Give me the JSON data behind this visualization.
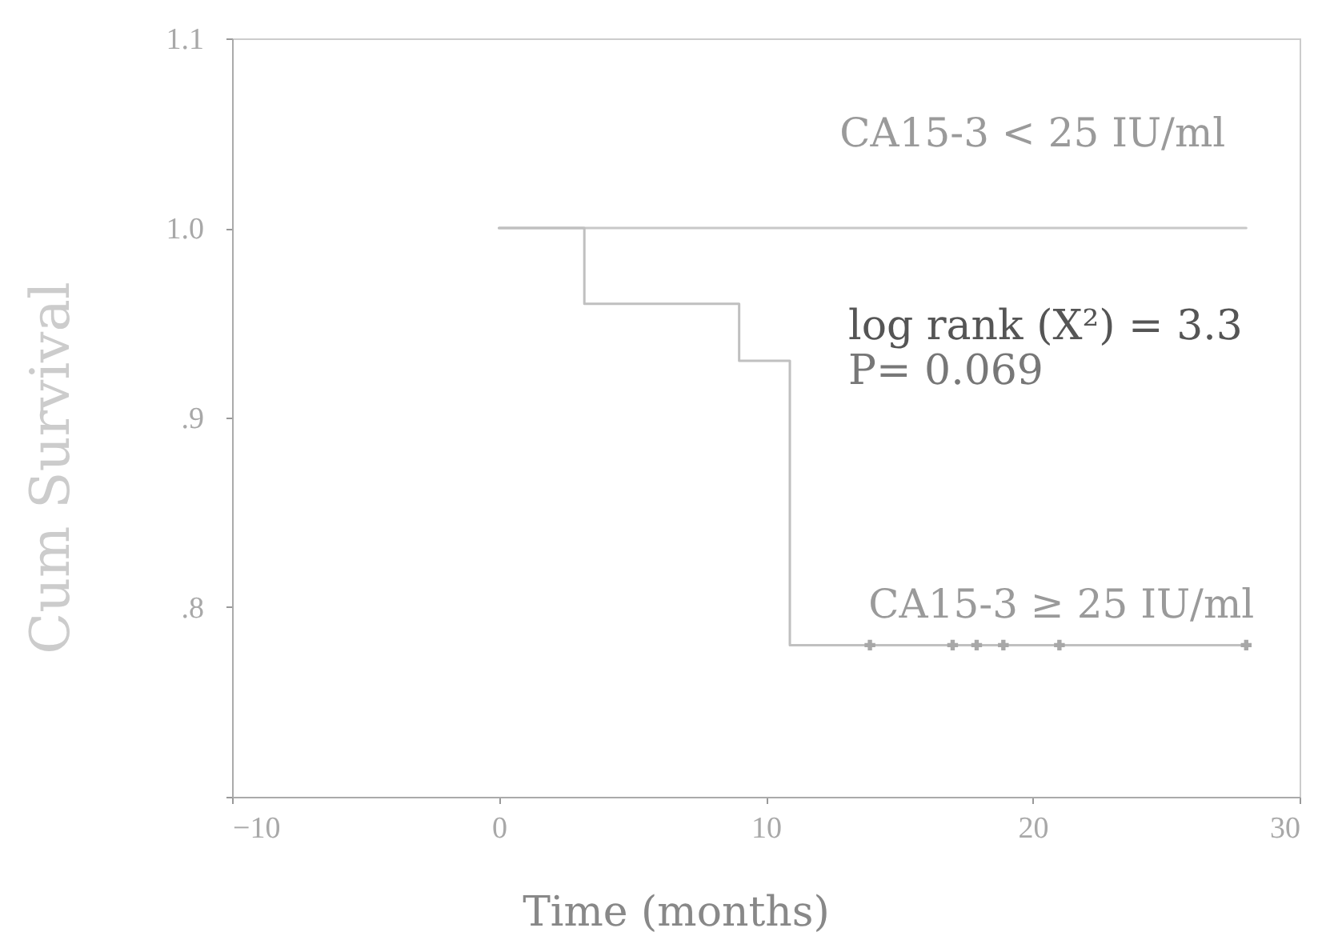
{
  "chart_data": {
    "type": "step",
    "xlabel": "Time (months)",
    "ylabel": "Cum Survival",
    "xlim": [
      -10,
      30
    ],
    "xticks": [
      -10,
      0,
      10,
      20,
      30
    ],
    "ylim": [
      0.7,
      1.1
    ],
    "yticks": [
      {
        "value": 0.7,
        "label": null
      },
      {
        "value": 0.8,
        "label": ".8"
      },
      {
        "value": 0.9,
        "label": ".9"
      },
      {
        "value": 1.0,
        "label": "1.0"
      },
      1.1
    ],
    "series": [
      {
        "name": "CA15-3 < 25 IU/ml",
        "color": "#c8c8c8",
        "x": [
          0,
          28
        ],
        "values": [
          1.0,
          1.0
        ]
      },
      {
        "name": "CA15-3 ≥ 25 IU/ml",
        "color": "#c0c0c0",
        "x": [
          0,
          3.2,
          9,
          10.9,
          28
        ],
        "values": [
          1.0,
          0.96,
          0.93,
          0.78,
          0.78
        ]
      },
      {
        "type": "scatter",
        "marker": "cross",
        "color": "#a8a8a8",
        "x": [
          13.9,
          17,
          17.9,
          18.9,
          21,
          28
        ],
        "values": [
          0.78,
          0.78,
          0.78,
          0.78,
          0.78,
          0.78
        ]
      }
    ],
    "annotations": [
      "log rank (X²) = 3.3",
      "P= 0.069"
    ],
    "legend": false,
    "grid": false
  }
}
